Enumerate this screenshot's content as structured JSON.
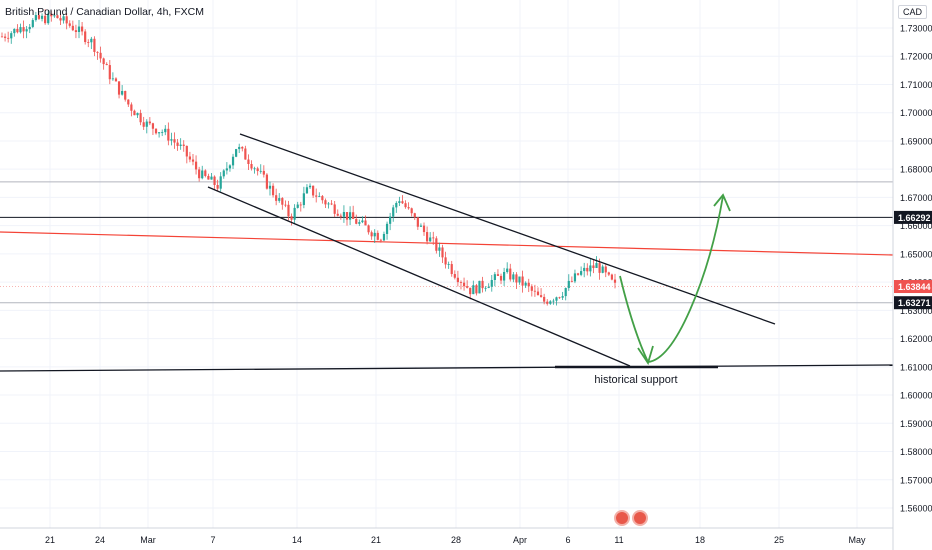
{
  "header": {
    "title": "British Pound / Canadian Dollar, 4h, FXCM",
    "currency": "CAD"
  },
  "colors": {
    "up": "#26a69a",
    "down": "#ef5350",
    "channel": "#131722",
    "redline": "#f44336",
    "arrow": "#43a047",
    "grid": "#f0f3fa",
    "axis_text": "#131722"
  },
  "chart_data": {
    "type": "candlestick",
    "symbol": "GBPCAD",
    "timeframe": "4h",
    "source": "FXCM",
    "ylim": [
      1.555,
      1.737
    ],
    "y_ticks": [
      "1.73000",
      "1.72000",
      "1.71000",
      "1.70000",
      "1.69000",
      "1.68000",
      "1.67000",
      "1.66000",
      "1.65000",
      "1.64000",
      "1.63000",
      "1.62000",
      "1.61000",
      "1.60000",
      "1.59000",
      "1.58000",
      "1.57000",
      "1.56000"
    ],
    "x_ticks": [
      "21",
      "24",
      "Mar",
      "7",
      "14",
      "21",
      "28",
      "Apr",
      "6",
      "11",
      "18",
      "25",
      "May"
    ],
    "price_labels": [
      {
        "value": "1.66292",
        "price": 1.66292,
        "style": "dark"
      },
      {
        "value": "1.63844",
        "price": 1.63844,
        "style": "red"
      },
      {
        "value": "1.63271",
        "price": 1.63271,
        "style": "dark"
      }
    ],
    "close_path": [
      [
        "21",
        1.727
      ],
      [
        "21",
        1.73
      ],
      [
        "24",
        1.733
      ],
      [
        "24",
        1.734
      ],
      [
        "24",
        1.73
      ],
      [
        "24",
        1.725
      ],
      [
        "Mar",
        1.713
      ],
      [
        "Mar",
        1.703
      ],
      [
        "Mar",
        1.696
      ],
      [
        "Mar",
        1.693
      ],
      [
        "7",
        1.687
      ],
      [
        "7",
        1.678
      ],
      [
        "7",
        1.674
      ],
      [
        "7",
        1.688
      ],
      [
        "14",
        1.681
      ],
      [
        "14",
        1.672
      ],
      [
        "14",
        1.663
      ],
      [
        "14",
        1.673
      ],
      [
        "14",
        1.668
      ],
      [
        "21",
        1.664
      ],
      [
        "21",
        1.66
      ],
      [
        "21",
        1.656
      ],
      [
        "21",
        1.67
      ],
      [
        "21",
        1.661
      ],
      [
        "28",
        1.653
      ],
      [
        "28",
        1.644
      ],
      [
        "28",
        1.637
      ],
      [
        "28",
        1.64
      ],
      [
        "Apr",
        1.643
      ],
      [
        "Apr",
        1.639
      ],
      [
        "6",
        1.633
      ],
      [
        "6",
        1.636
      ],
      [
        "6",
        1.643
      ],
      [
        "11",
        1.646
      ],
      [
        "11",
        1.6384
      ]
    ],
    "horizontal_levels": [
      {
        "price": 1.66292,
        "color": "#131722"
      },
      {
        "price": 1.63271,
        "color": "#b2b5be"
      },
      {
        "price": 1.6755,
        "color": "#b2b5be"
      }
    ],
    "annotations": [
      {
        "type": "text",
        "text": "historical support",
        "x": "11",
        "y": 1.6075
      }
    ]
  }
}
